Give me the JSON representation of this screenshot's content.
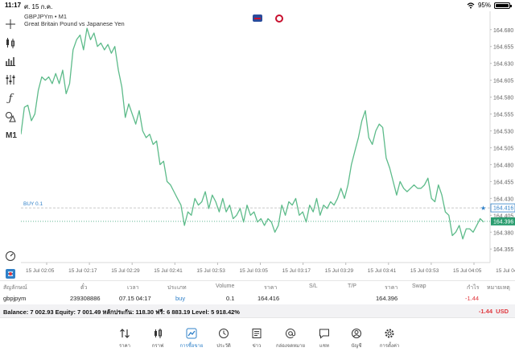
{
  "status": {
    "time": "11:17",
    "date": "ศ. 15 ก.ค.",
    "battery": "95%"
  },
  "toolbar": {
    "items": [
      {
        "name": "crosshair-icon",
        "glyph": "✛"
      },
      {
        "name": "candlestick-icon",
        "glyph": ""
      },
      {
        "name": "bars-icon",
        "glyph": ""
      },
      {
        "name": "indicators-icon",
        "glyph": ""
      },
      {
        "name": "function-icon",
        "glyph": "ƒ"
      },
      {
        "name": "objects-icon",
        "glyph": ""
      }
    ],
    "timeframe": "M1"
  },
  "chart": {
    "symbol_line": "GBPJPYm • M1",
    "description": "Great Britain Pound vs Japanese Yen",
    "buy_label": "BUY 0.1",
    "buy_price": "164.416",
    "current_price": "164.396",
    "line_color": "#5dbb8a",
    "price_tag_color": "#2a9d6f",
    "buy_tag_color": "#2f80c8"
  },
  "chart_data": {
    "type": "line",
    "ylim": [
      164.335,
      164.7
    ],
    "y_ticks": [
      "164.680",
      "164.655",
      "164.630",
      "164.605",
      "164.580",
      "164.555",
      "164.530",
      "164.505",
      "164.480",
      "164.455",
      "164.430",
      "164.405",
      "164.380",
      "164.355"
    ],
    "x_ticks": [
      "15 Jul 02:05",
      "15 Jul 02:17",
      "15 Jul 02:29",
      "15 Jul 02:41",
      "15 Jul 02:53",
      "15 Jul 03:05",
      "15 Jul 03:17",
      "15 Jul 03:29",
      "15 Jul 03:41",
      "15 Jul 03:53",
      "15 Jul 04:05",
      "15 Jul 04:17"
    ],
    "series": [
      {
        "values": [
          164.525,
          164.565,
          164.568,
          164.545,
          164.555,
          164.59,
          164.61,
          164.605,
          164.61,
          164.6,
          164.615,
          164.6,
          164.62,
          164.585,
          164.6,
          164.65,
          164.665,
          164.672,
          164.65,
          164.682,
          164.665,
          164.675,
          164.655,
          164.66,
          164.65,
          164.658,
          164.645,
          164.655,
          164.62,
          164.595,
          164.55,
          164.57,
          164.555,
          164.54,
          164.56,
          164.53,
          164.52,
          164.525,
          164.51,
          164.515,
          164.48,
          164.485,
          164.455,
          164.45,
          164.44,
          164.43,
          164.42,
          164.39,
          164.41,
          164.405,
          164.43,
          164.42,
          164.425,
          164.44,
          164.415,
          164.435,
          164.425,
          164.41,
          164.43,
          164.41,
          164.42,
          164.4,
          164.405,
          164.415,
          164.395,
          164.42,
          164.405,
          164.41,
          164.395,
          164.4,
          164.39,
          164.4,
          164.395,
          164.38,
          164.39,
          164.42,
          164.405,
          164.425,
          164.42,
          164.43,
          164.405,
          164.41,
          164.395,
          164.42,
          164.41,
          164.43,
          164.405,
          164.42,
          164.415,
          164.425,
          164.42,
          164.43,
          164.445,
          164.43,
          164.45,
          164.48,
          164.5,
          164.52,
          164.545,
          164.56,
          164.52,
          164.51,
          164.53,
          164.54,
          164.535,
          164.49,
          164.475,
          164.455,
          164.435,
          164.455,
          164.445,
          164.44,
          164.445,
          164.45,
          164.445,
          164.445,
          164.45,
          164.46,
          164.43,
          164.425,
          164.45,
          164.435,
          164.41,
          164.405,
          164.375,
          164.38,
          164.39,
          164.37,
          164.385,
          164.385,
          164.38,
          164.39,
          164.4,
          164.395
        ]
      }
    ]
  },
  "table": {
    "headers": [
      "สัญลักษณ์",
      "ตั๋ว",
      "เวลา",
      "ประเภท",
      "Volume",
      "ราคา",
      "S/L",
      "T/P",
      "ราคา",
      "Swap",
      "กำไร",
      "หมายเหตุ"
    ],
    "row": {
      "symbol": "gbpjpym",
      "ticket": "239308886",
      "time": "07.15 04:17",
      "type": "buy",
      "volume": "0.1",
      "open_price": "164.416",
      "current_price": "164.396",
      "profit": "-1.44"
    }
  },
  "balance": {
    "text": "Balance: 7 002.93 Equity: 7 001.49 หลักประกัน: 118.30 ฟรี: 6 883.19 Level: 5 918.42%",
    "profit": "-1.44",
    "currency": "USD"
  },
  "nav": [
    {
      "label": "ราคา",
      "icon": "arrows-updown-icon"
    },
    {
      "label": "กราฟ",
      "icon": "candles-icon"
    },
    {
      "label": "การซื้อขาย",
      "icon": "trade-chart-icon",
      "active": true
    },
    {
      "label": "ประวัติ",
      "icon": "history-icon"
    },
    {
      "label": "ข่าว",
      "icon": "news-icon"
    },
    {
      "label": "กล่องจดหมาย",
      "icon": "mail-at-icon"
    },
    {
      "label": "แชท",
      "icon": "chat-icon"
    },
    {
      "label": "บัญชี",
      "icon": "account-icon"
    },
    {
      "label": "การตั้งค่า",
      "icon": "settings-icon"
    }
  ]
}
